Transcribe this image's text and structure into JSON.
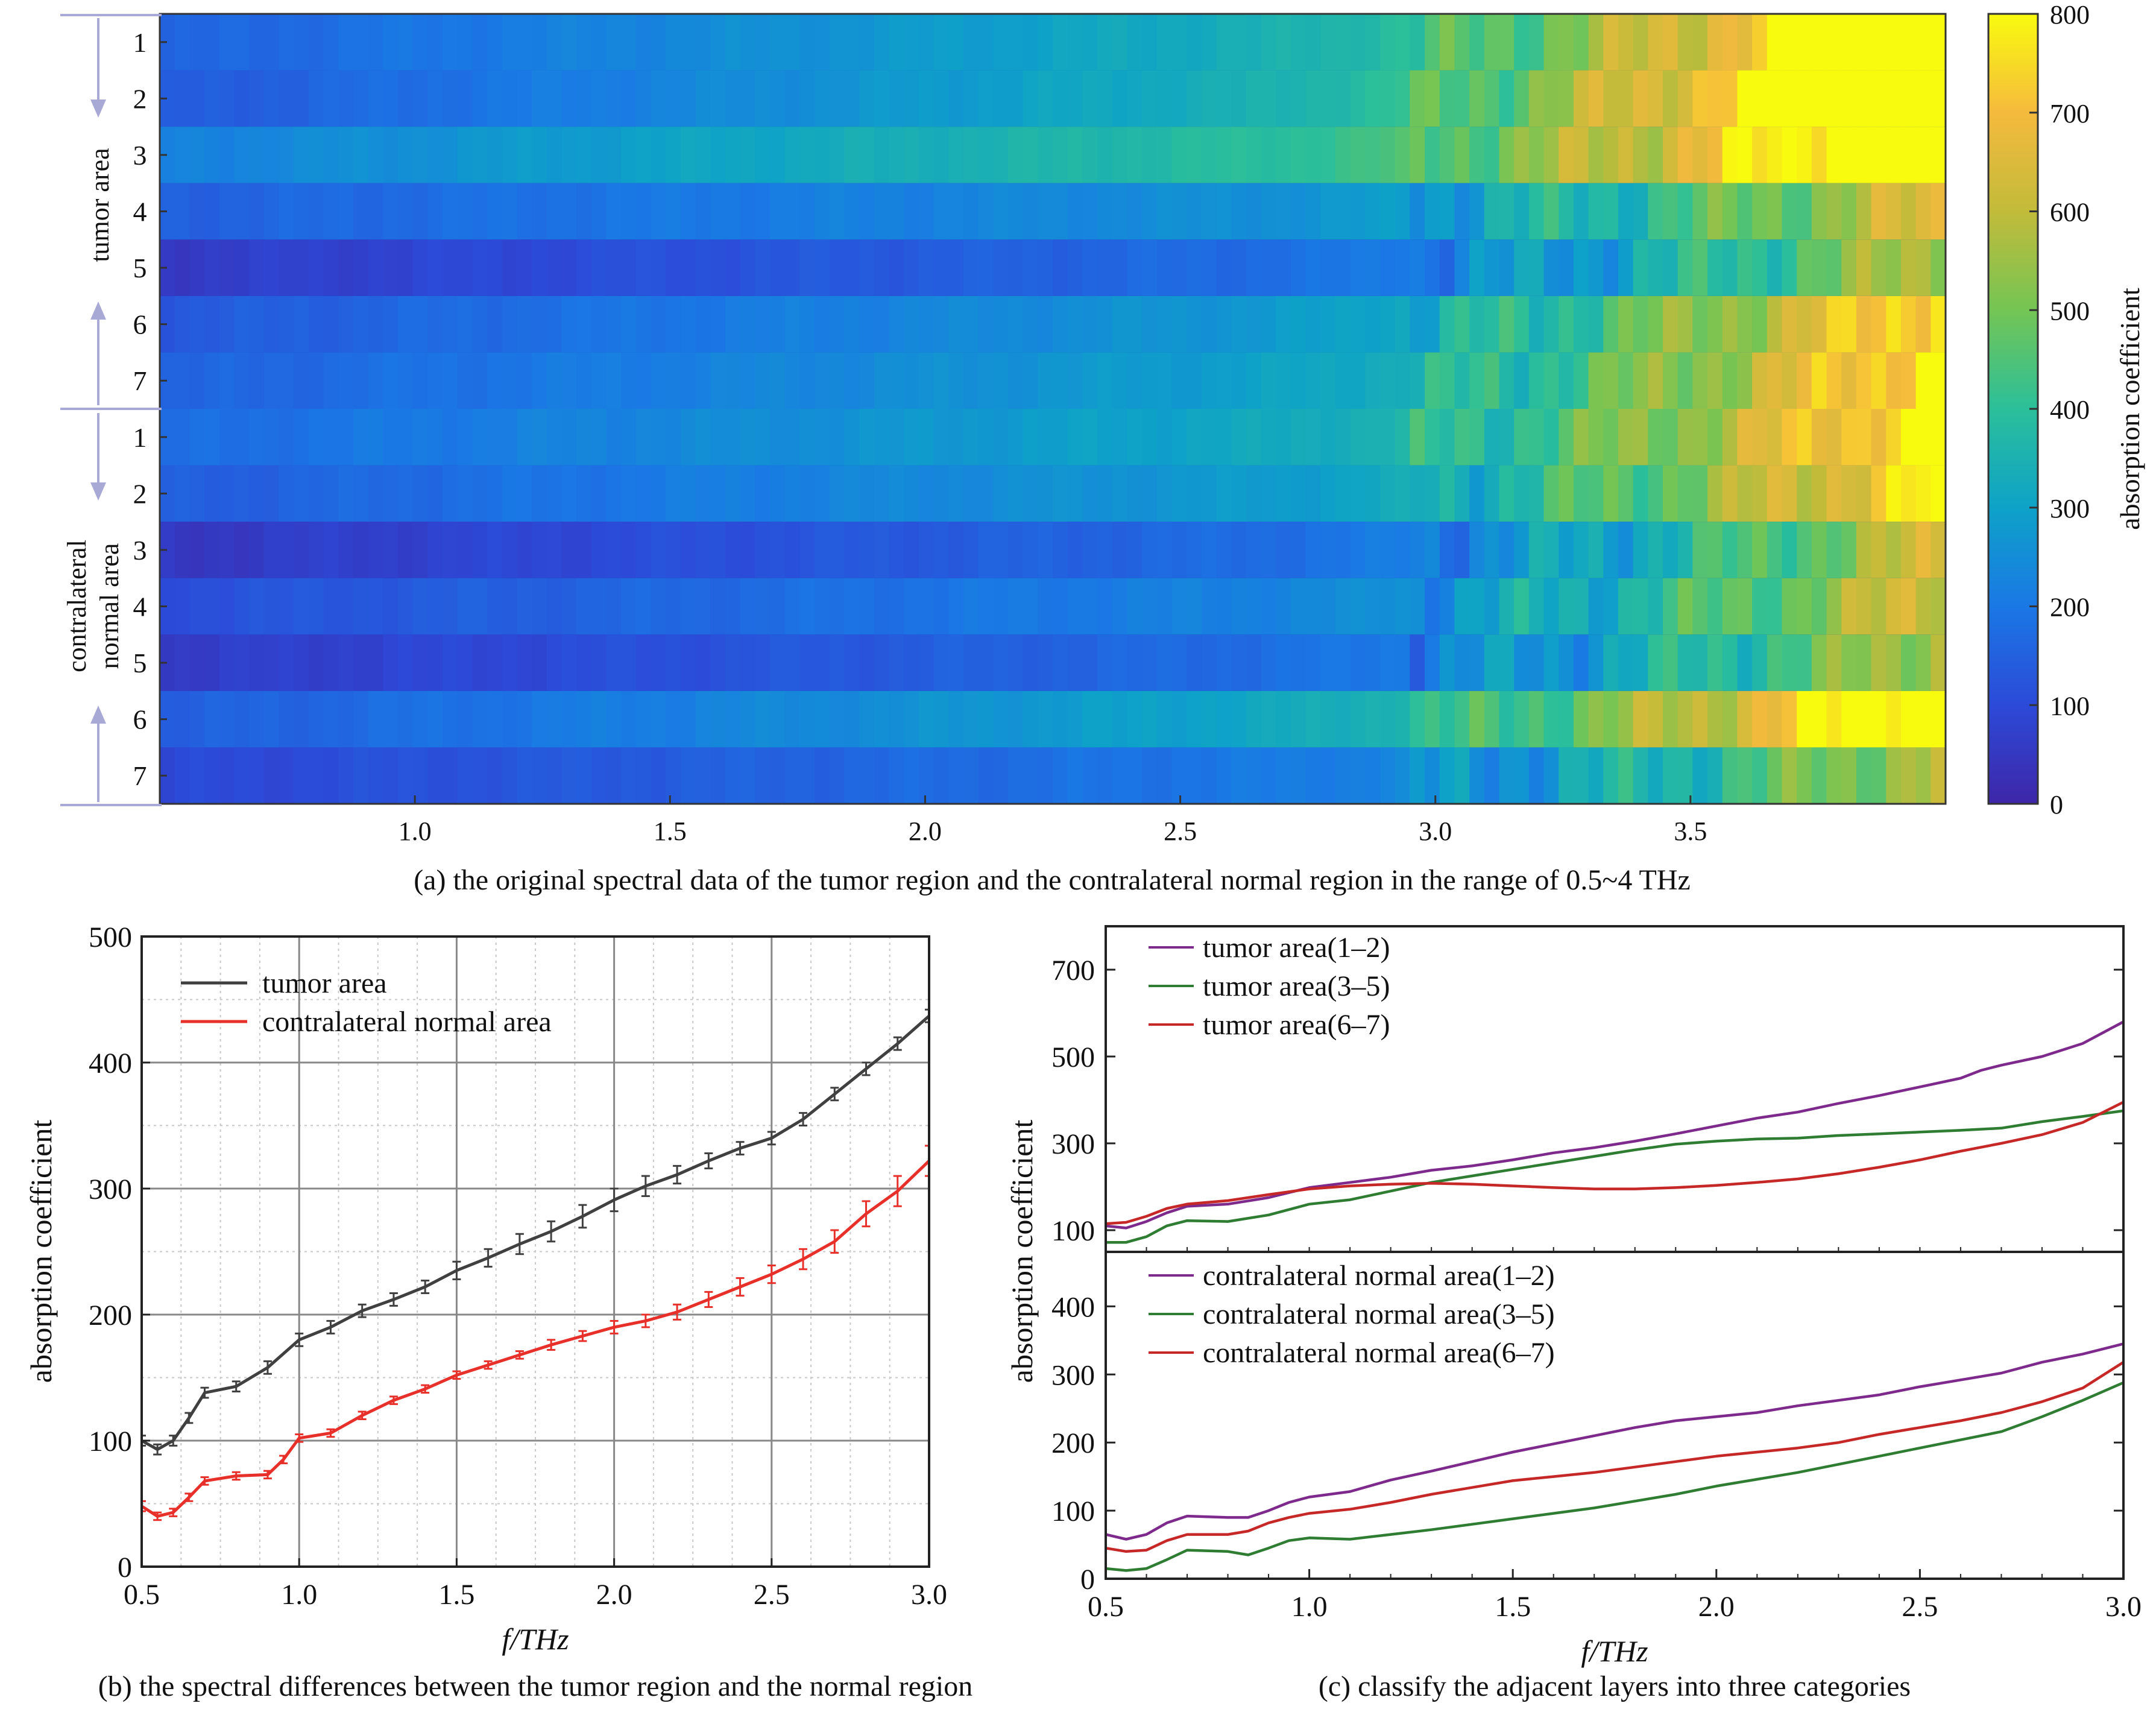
{
  "figure": {
    "captions": {
      "a": "(a) the original spectral data of the tumor region and the contralateral normal region in the range of 0.5~4 THz",
      "b": "(b) the spectral differences between the tumor region and the normal region",
      "c": "(c) classify the adjacent layers into three categories"
    },
    "group_labels": {
      "tumor": "tumor area",
      "normal_line1": "contralateral",
      "normal_line2": "normal area"
    },
    "colors": {
      "tumor": "#404040",
      "normal": "#e8302a",
      "purple": "#7d2a8c",
      "green": "#2e7d32",
      "red": "#c62828"
    }
  },
  "chart_data": [
    {
      "type": "heatmap",
      "id": "a",
      "title": "",
      "xlabel": "",
      "colorbar_label": "absorption coefficient",
      "xlim": [
        0.5,
        4.0
      ],
      "x_ticks": [
        "1.0",
        "1.5",
        "2.0",
        "2.5",
        "3.0",
        "3.5"
      ],
      "x_tick_values": [
        1.0,
        1.5,
        2.0,
        2.5,
        3.0,
        3.5
      ],
      "clim": [
        0,
        800
      ],
      "colorbar_ticks": [
        "0",
        "100",
        "200",
        "300",
        "400",
        "500",
        "600",
        "700",
        "800"
      ],
      "groups": [
        "tumor area",
        "contralateral normal area"
      ],
      "row_labels": [
        "1",
        "2",
        "3",
        "4",
        "5",
        "6",
        "7",
        "1",
        "2",
        "3",
        "4",
        "5",
        "6",
        "7"
      ],
      "row_profiles": [
        {
          "start": 150,
          "k": 2.2,
          "pivot": 0.38
        },
        {
          "start": 130,
          "k": 2.5,
          "pivot": 0.6
        },
        {
          "start": 220,
          "k": 2.0,
          "pivot": 0.62
        },
        {
          "start": 150,
          "k": 1.25,
          "pivot": 0.16
        },
        {
          "start": 60,
          "k": 1.35,
          "pivot": 0.16
        },
        {
          "start": 130,
          "k": 1.7,
          "pivot": 0.28
        },
        {
          "start": 150,
          "k": 1.7,
          "pivot": 0.28
        },
        {
          "start": 170,
          "k": 1.7,
          "pivot": 0.32
        },
        {
          "start": 140,
          "k": 1.65,
          "pivot": 0.28
        },
        {
          "start": 50,
          "k": 1.45,
          "pivot": 0.18
        },
        {
          "start": 110,
          "k": 1.35,
          "pivot": 0.18
        },
        {
          "start": 60,
          "k": 1.35,
          "pivot": 0.18
        },
        {
          "start": 140,
          "k": 2.0,
          "pivot": 0.45
        },
        {
          "start": 90,
          "k": 1.3,
          "pivot": 0.16
        }
      ]
    },
    {
      "type": "line",
      "id": "b",
      "xlabel": "f/THz",
      "ylabel": "absorption coefficient",
      "xlim": [
        0.5,
        3.0
      ],
      "ylim": [
        0,
        500
      ],
      "x_ticks": [
        "0.5",
        "1.0",
        "1.5",
        "2.0",
        "2.5",
        "3.0"
      ],
      "y_ticks": [
        "0",
        "100",
        "200",
        "300",
        "400",
        "500"
      ],
      "grid": true,
      "legend_position": "top-left",
      "series": [
        {
          "name": "tumor area",
          "color": "#404040",
          "x": [
            0.5,
            0.55,
            0.6,
            0.65,
            0.7,
            0.8,
            0.9,
            1.0,
            1.1,
            1.2,
            1.3,
            1.4,
            1.5,
            1.6,
            1.7,
            1.8,
            1.9,
            2.0,
            2.1,
            2.2,
            2.3,
            2.4,
            2.5,
            2.6,
            2.7,
            2.8,
            2.9,
            3.0
          ],
          "y": [
            100,
            93,
            100,
            118,
            138,
            143,
            158,
            180,
            190,
            203,
            212,
            222,
            235,
            245,
            256,
            266,
            278,
            291,
            302,
            311,
            322,
            332,
            340,
            355,
            375,
            395,
            415,
            437
          ],
          "err": [
            4,
            4,
            4,
            4,
            4,
            4,
            5,
            5,
            5,
            5,
            5,
            5,
            7,
            7,
            8,
            8,
            9,
            9,
            8,
            7,
            6,
            5,
            5,
            5,
            5,
            5,
            5,
            5
          ]
        },
        {
          "name": "contralateral normal area",
          "color": "#e8302a",
          "x": [
            0.5,
            0.55,
            0.6,
            0.65,
            0.7,
            0.8,
            0.9,
            0.95,
            1.0,
            1.1,
            1.2,
            1.3,
            1.4,
            1.5,
            1.6,
            1.7,
            1.8,
            1.9,
            2.0,
            2.1,
            2.2,
            2.3,
            2.4,
            2.5,
            2.6,
            2.7,
            2.8,
            2.9,
            3.0
          ],
          "y": [
            48,
            40,
            43,
            55,
            68,
            72,
            73,
            85,
            102,
            106,
            120,
            132,
            141,
            152,
            160,
            168,
            176,
            183,
            190,
            195,
            202,
            212,
            222,
            232,
            244,
            258,
            280,
            298,
            322
          ],
          "err": [
            4,
            3,
            3,
            3,
            3,
            3,
            3,
            3,
            3,
            3,
            3,
            3,
            3,
            3,
            3,
            3,
            4,
            4,
            5,
            5,
            6,
            6,
            7,
            7,
            8,
            9,
            10,
            12,
            12
          ]
        }
      ]
    },
    {
      "type": "line",
      "id": "c_top",
      "xlabel": "",
      "ylabel": "absorption coefficient",
      "xlim": [
        0.5,
        3.0
      ],
      "ylim": [
        50,
        800
      ],
      "y_ticks": [
        "100",
        "300",
        "500",
        "700"
      ],
      "y_tick_values": [
        100,
        300,
        500,
        700
      ],
      "legend_position": "top-left",
      "series": [
        {
          "name": "tumor area(1–2)",
          "color": "#7d2a8c",
          "x": [
            0.5,
            0.55,
            0.6,
            0.65,
            0.7,
            0.8,
            0.9,
            1.0,
            1.1,
            1.2,
            1.3,
            1.4,
            1.5,
            1.6,
            1.7,
            1.8,
            1.9,
            2.0,
            2.1,
            2.2,
            2.3,
            2.4,
            2.5,
            2.6,
            2.65,
            2.7,
            2.8,
            2.9,
            3.0
          ],
          "y": [
            110,
            105,
            120,
            140,
            155,
            160,
            175,
            198,
            210,
            222,
            238,
            248,
            262,
            278,
            290,
            305,
            322,
            340,
            358,
            372,
            392,
            410,
            430,
            450,
            468,
            480,
            500,
            530,
            580
          ]
        },
        {
          "name": "tumor area(3–5)",
          "color": "#2e7d32",
          "x": [
            0.5,
            0.55,
            0.6,
            0.65,
            0.7,
            0.8,
            0.9,
            1.0,
            1.1,
            1.2,
            1.3,
            1.4,
            1.5,
            1.6,
            1.7,
            1.8,
            1.9,
            2.0,
            2.1,
            2.2,
            2.3,
            2.4,
            2.5,
            2.6,
            2.7,
            2.8,
            2.9,
            3.0
          ],
          "y": [
            72,
            72,
            85,
            110,
            122,
            120,
            135,
            160,
            170,
            190,
            210,
            225,
            240,
            255,
            270,
            285,
            298,
            305,
            310,
            312,
            318,
            322,
            326,
            330,
            335,
            350,
            362,
            375
          ]
        },
        {
          "name": "tumor area(6–7)",
          "color": "#c62828",
          "x": [
            0.5,
            0.55,
            0.6,
            0.65,
            0.7,
            0.8,
            0.9,
            1.0,
            1.1,
            1.2,
            1.3,
            1.4,
            1.5,
            1.6,
            1.7,
            1.8,
            1.9,
            2.0,
            2.1,
            2.2,
            2.3,
            2.4,
            2.5,
            2.6,
            2.7,
            2.8,
            2.9,
            3.0
          ],
          "y": [
            115,
            118,
            132,
            150,
            160,
            168,
            182,
            195,
            202,
            206,
            208,
            206,
            202,
            198,
            195,
            195,
            198,
            203,
            210,
            218,
            230,
            245,
            262,
            282,
            300,
            320,
            348,
            395
          ]
        }
      ]
    },
    {
      "type": "line",
      "id": "c_bottom",
      "xlabel": "f/THz",
      "ylabel": "absorption coefficient",
      "xlim": [
        0.5,
        3.0
      ],
      "ylim": [
        0,
        480
      ],
      "x_ticks": [
        "0.5",
        "1.0",
        "1.5",
        "2.0",
        "2.5",
        "3.0"
      ],
      "y_ticks": [
        "0",
        "100",
        "200",
        "300",
        "400"
      ],
      "y_tick_values": [
        0,
        100,
        200,
        300,
        400
      ],
      "legend_position": "top-left",
      "series": [
        {
          "name": "contralateral normal area(1–2)",
          "color": "#7d2a8c",
          "x": [
            0.5,
            0.55,
            0.6,
            0.65,
            0.7,
            0.8,
            0.85,
            0.9,
            0.95,
            1.0,
            1.1,
            1.2,
            1.3,
            1.4,
            1.5,
            1.6,
            1.7,
            1.8,
            1.9,
            2.0,
            2.1,
            2.2,
            2.3,
            2.4,
            2.5,
            2.6,
            2.7,
            2.8,
            2.9,
            3.0
          ],
          "y": [
            65,
            58,
            65,
            82,
            92,
            90,
            90,
            100,
            112,
            120,
            128,
            145,
            158,
            172,
            186,
            198,
            210,
            222,
            232,
            238,
            244,
            254,
            262,
            270,
            282,
            292,
            302,
            318,
            330,
            345
          ]
        },
        {
          "name": "contralateral normal area(3–5)",
          "color": "#2e7d32",
          "x": [
            0.5,
            0.55,
            0.6,
            0.65,
            0.7,
            0.8,
            0.85,
            0.9,
            0.95,
            1.0,
            1.1,
            1.2,
            1.3,
            1.4,
            1.5,
            1.6,
            1.7,
            1.8,
            1.9,
            2.0,
            2.1,
            2.2,
            2.3,
            2.4,
            2.5,
            2.6,
            2.7,
            2.8,
            2.9,
            3.0
          ],
          "y": [
            15,
            12,
            15,
            28,
            42,
            40,
            35,
            45,
            56,
            60,
            58,
            65,
            72,
            80,
            88,
            96,
            104,
            114,
            124,
            136,
            146,
            156,
            168,
            180,
            192,
            204,
            216,
            238,
            262,
            288
          ]
        },
        {
          "name": "contralateral normal area(6–7)",
          "color": "#c62828",
          "x": [
            0.5,
            0.55,
            0.6,
            0.65,
            0.7,
            0.8,
            0.85,
            0.9,
            0.95,
            1.0,
            1.1,
            1.2,
            1.3,
            1.4,
            1.5,
            1.6,
            1.7,
            1.8,
            1.9,
            2.0,
            2.1,
            2.2,
            2.3,
            2.4,
            2.5,
            2.6,
            2.7,
            2.8,
            2.9,
            3.0
          ],
          "y": [
            45,
            40,
            42,
            56,
            65,
            65,
            70,
            82,
            90,
            96,
            102,
            112,
            124,
            134,
            144,
            150,
            156,
            164,
            172,
            180,
            186,
            192,
            200,
            212,
            222,
            232,
            244,
            260,
            280,
            318
          ]
        }
      ]
    }
  ]
}
